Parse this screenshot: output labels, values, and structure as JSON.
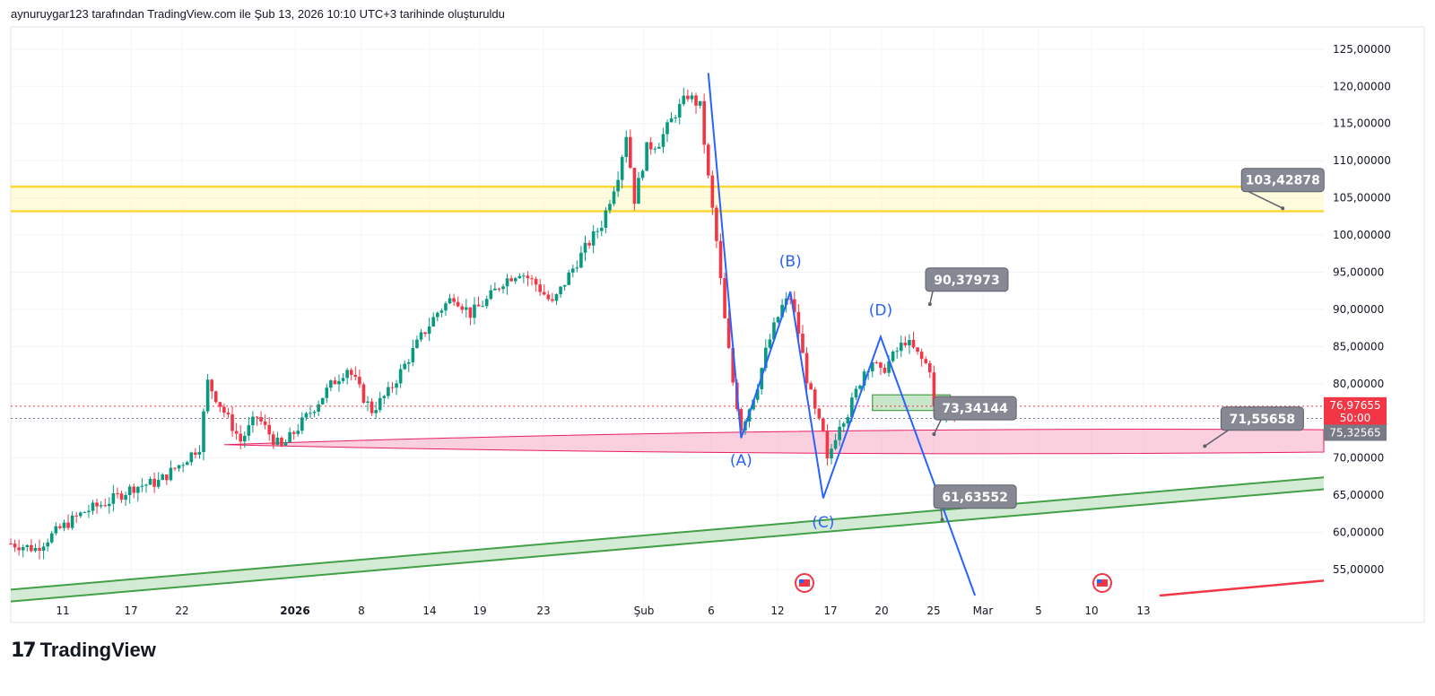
{
  "header": {
    "attribution": "aynuruygar123 tarafından TradingView.com ile Şub 13, 2026 10:10 UTC+3 tarihinde oluşturuldu"
  },
  "brand": {
    "mark": "17",
    "name": "TradingView"
  },
  "colors": {
    "up": "#089981",
    "down": "#f23645",
    "wave": "#2962ff",
    "yellow_zone": "#fff59d",
    "yellow_line": "#fdd835",
    "pink_zone": "#f8bbd0",
    "pink_stroke": "#e91e63",
    "green_channel": "#c8e6c9",
    "green_stroke": "#43a047",
    "callout_bg": "#868993",
    "red_line": "#f23645"
  },
  "chart_data": {
    "type": "candlestick",
    "y_axis": {
      "ticks": [
        "125,00000",
        "120,00000",
        "115,00000",
        "110,00000",
        "105,00000",
        "100,00000",
        "95,00000",
        "90,00000",
        "85,00000",
        "80,00000",
        "75,00000",
        "70,00000",
        "65,00000",
        "60,00000",
        "55,00000"
      ],
      "tick_values": [
        125,
        120,
        115,
        110,
        105,
        100,
        95,
        90,
        85,
        80,
        75,
        70,
        65,
        60,
        55
      ],
      "ylim": [
        51.5,
        128
      ]
    },
    "x_axis": {
      "labels": [
        "11",
        "17",
        "22",
        "2026",
        "8",
        "14",
        "19",
        "23",
        "Şub",
        "6",
        "12",
        "17",
        "20",
        "25",
        "Mar",
        "5",
        "10",
        "13"
      ],
      "bold": [
        "2026"
      ]
    },
    "price_path": [
      [
        0,
        58.5
      ],
      [
        6,
        57.8
      ],
      [
        12,
        60.5
      ],
      [
        18,
        62.8
      ],
      [
        24,
        64.2
      ],
      [
        30,
        66.1
      ],
      [
        36,
        66.8
      ],
      [
        42,
        69.5
      ],
      [
        46,
        71.6
      ],
      [
        48,
        80.2
      ],
      [
        52,
        76.2
      ],
      [
        56,
        72.3
      ],
      [
        60,
        75.6
      ],
      [
        64,
        72.5
      ],
      [
        66,
        71.4
      ],
      [
        70,
        74.1
      ],
      [
        74,
        76.9
      ],
      [
        78,
        79.8
      ],
      [
        82,
        82.1
      ],
      [
        84,
        80.3
      ],
      [
        86,
        78.1
      ],
      [
        88,
        76.4
      ],
      [
        92,
        78.8
      ],
      [
        96,
        82.5
      ],
      [
        100,
        86.3
      ],
      [
        104,
        89.6
      ],
      [
        108,
        91.8
      ],
      [
        112,
        89.4
      ],
      [
        116,
        91.2
      ],
      [
        120,
        93.8
      ],
      [
        124,
        95.1
      ],
      [
        128,
        93.4
      ],
      [
        132,
        90.7
      ],
      [
        136,
        94.6
      ],
      [
        140,
        98.2
      ],
      [
        144,
        101.5
      ],
      [
        148,
        108.2
      ],
      [
        150,
        113.6
      ],
      [
        152,
        104.8
      ],
      [
        155,
        111.7
      ],
      [
        158,
        112.5
      ],
      [
        162,
        116.4
      ],
      [
        165,
        118.8
      ],
      [
        168,
        117.3
      ],
      [
        170,
        107.6
      ],
      [
        172,
        99.1
      ],
      [
        174,
        88.5
      ],
      [
        176,
        80.2
      ],
      [
        178,
        74.1
      ],
      [
        180,
        76.8
      ],
      [
        182,
        79.9
      ],
      [
        184,
        84.3
      ],
      [
        186,
        87.6
      ],
      [
        188,
        90.4
      ],
      [
        190,
        91.6
      ],
      [
        192,
        86.9
      ],
      [
        194,
        80.7
      ],
      [
        196,
        76.2
      ],
      [
        198,
        73.1
      ],
      [
        199,
        69.4
      ],
      [
        200,
        71.3
      ],
      [
        202,
        74.8
      ],
      [
        204,
        76.1
      ],
      [
        206,
        78.9
      ],
      [
        208,
        81.8
      ],
      [
        210,
        83.1
      ],
      [
        212,
        81.4
      ],
      [
        214,
        82.9
      ],
      [
        216,
        84.4
      ],
      [
        218,
        85.8
      ],
      [
        220,
        84.6
      ],
      [
        222,
        83.2
      ],
      [
        224,
        82.1
      ],
      [
        225,
        76.6
      ],
      [
        227,
        75.8
      ],
      [
        229,
        76.8
      ],
      [
        231,
        76.4
      ]
    ],
    "x_extent": [
      0,
      320
    ],
    "x_last": 231,
    "wave_points": [
      [
        170,
        121.8
      ],
      [
        178,
        72.7
      ],
      [
        190,
        92.4
      ],
      [
        198,
        64.6
      ],
      [
        212,
        86.3
      ],
      [
        235,
        51.5
      ]
    ],
    "wave_labels": [
      {
        "text": "(A)",
        "x": 178,
        "y": 69.0
      },
      {
        "text": "(B)",
        "x": 190,
        "y": 95.8
      },
      {
        "text": "(C)",
        "x": 198,
        "y": 60.7
      },
      {
        "text": "(D)",
        "x": 212,
        "y": 89.2
      }
    ],
    "zones": {
      "yellow": {
        "y_top": 106.5,
        "y_bottom": 103.2,
        "x_start": 0
      },
      "pink_ellipse": {
        "x_start": 52,
        "y_center": 71.8,
        "y_top": 73.8,
        "y_bottom": 70.8
      },
      "green_channel": {
        "x_start": 0,
        "x_end": 320,
        "y0_top": 52.3,
        "y0_bottom": 50.7,
        "y1_top": 67.4,
        "y1_bottom": 65.8
      },
      "green_box": {
        "x_start": 210,
        "x_end": 229,
        "y_top": 78.5,
        "y_bottom": 76.4
      },
      "red_line": {
        "x_start": 280,
        "x_end": 320,
        "y_start": 51.5,
        "y_end": 53.5
      }
    },
    "callouts": [
      {
        "text": "103,42878",
        "x": 310,
        "y": 103.6,
        "label_x": 310,
        "label_y": 107.4
      },
      {
        "text": "90,37973",
        "x": 224,
        "y": 90.7,
        "label_x": 233,
        "label_y": 94.0
      },
      {
        "text": "73,34144",
        "x": 225,
        "y": 73.2,
        "label_x": 235,
        "label_y": 76.7
      },
      {
        "text": "71,55658",
        "x": 291,
        "y": 71.6,
        "label_x": 305,
        "label_y": 75.3
      },
      {
        "text": "61,63552",
        "x": 227,
        "y": 61.7,
        "label_x": 235,
        "label_y": 64.8
      }
    ],
    "price_tags": [
      {
        "lines": [
          "76,97655",
          "50:00"
        ],
        "y": 76.98,
        "color": "#f23645"
      },
      {
        "lines": [
          "75,32565"
        ],
        "y": 75.33,
        "color": "#787b86"
      }
    ],
    "current_price": 76.98,
    "prev_close": 75.33
  }
}
